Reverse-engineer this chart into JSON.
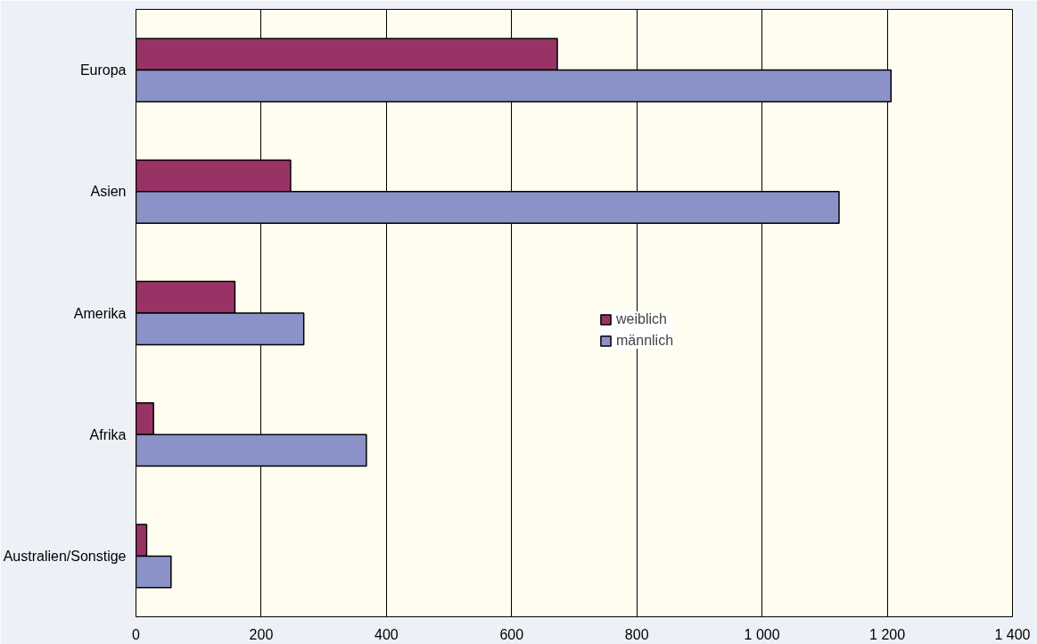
{
  "chart_data": {
    "type": "bar",
    "orientation": "horizontal",
    "categories": [
      "Europa",
      "Asien",
      "Amerika",
      "Afrika",
      "Australien/Sonstige"
    ],
    "series": [
      {
        "name": "weiblich",
        "color": "#993366",
        "values": [
          673,
          247,
          158,
          28,
          17
        ]
      },
      {
        "name": "männlich",
        "color": "#8a92c8",
        "values": [
          1206,
          1123,
          268,
          368,
          56
        ]
      }
    ],
    "xlim": [
      0,
      1400
    ],
    "xticks": [
      0,
      200,
      400,
      600,
      800,
      {
        "value": 1000,
        "label": "1 000"
      },
      {
        "value": 1200,
        "label": "1 200"
      },
      {
        "value": 1400,
        "label": "1 400"
      }
    ],
    "grid": "x",
    "legend": "right"
  }
}
